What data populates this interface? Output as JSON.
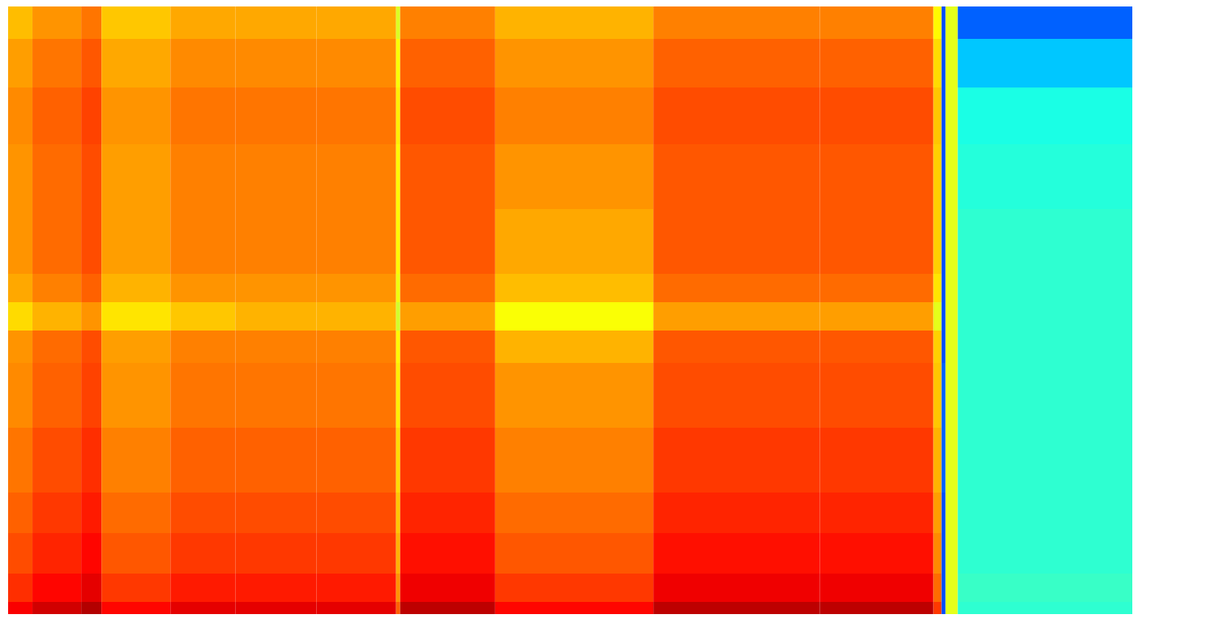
{
  "chart_data": {
    "type": "heatmap",
    "tick_labels": false,
    "xlim": [
      0,
      1385
    ],
    "ylim": [
      0,
      750
    ],
    "x_edges": [
      0,
      30,
      90,
      115,
      200,
      280,
      380,
      478,
      483,
      600,
      795,
      1000,
      1140,
      1150,
      1155,
      1170,
      1385
    ],
    "y_edges": [
      0,
      15,
      50,
      100,
      150,
      230,
      310,
      350,
      385,
      420,
      500,
      580,
      650,
      710,
      750
    ],
    "color_range": [
      0,
      1
    ],
    "cells": [
      [
        0.88,
        0.92,
        0.95,
        0.87,
        0.9,
        0.9,
        0.9,
        0.78,
        0.94,
        0.87,
        0.94,
        0.94,
        0.82,
        0.2,
        0.6,
        0.42
      ],
      [
        0.83,
        0.87,
        0.9,
        0.82,
        0.85,
        0.85,
        0.85,
        0.73,
        0.89,
        0.82,
        0.89,
        0.89,
        0.77,
        0.2,
        0.6,
        0.43
      ],
      [
        0.8,
        0.84,
        0.87,
        0.79,
        0.82,
        0.82,
        0.82,
        0.7,
        0.86,
        0.79,
        0.86,
        0.86,
        0.74,
        0.2,
        0.6,
        0.42
      ],
      [
        0.78,
        0.82,
        0.85,
        0.77,
        0.8,
        0.8,
        0.8,
        0.68,
        0.84,
        0.77,
        0.84,
        0.84,
        0.72,
        0.2,
        0.6,
        0.42
      ],
      [
        0.76,
        0.8,
        0.83,
        0.75,
        0.78,
        0.78,
        0.78,
        0.66,
        0.82,
        0.75,
        0.82,
        0.82,
        0.7,
        0.22,
        0.6,
        0.42
      ],
      [
        0.74,
        0.78,
        0.81,
        0.73,
        0.76,
        0.76,
        0.76,
        0.64,
        0.8,
        0.73,
        0.8,
        0.8,
        0.68,
        0.22,
        0.6,
        0.42
      ],
      [
        0.73,
        0.77,
        0.8,
        0.72,
        0.75,
        0.75,
        0.75,
        0.63,
        0.79,
        0.7,
        0.79,
        0.79,
        0.67,
        0.2,
        0.6,
        0.42
      ],
      [
        0.66,
        0.7,
        0.73,
        0.65,
        0.68,
        0.7,
        0.7,
        0.58,
        0.72,
        0.62,
        0.72,
        0.72,
        0.6,
        0.2,
        0.6,
        0.42
      ],
      [
        0.71,
        0.75,
        0.78,
        0.7,
        0.73,
        0.73,
        0.73,
        0.61,
        0.77,
        0.69,
        0.77,
        0.77,
        0.65,
        0.2,
        0.6,
        0.42
      ],
      [
        0.73,
        0.77,
        0.8,
        0.72,
        0.75,
        0.75,
        0.75,
        0.63,
        0.79,
        0.71,
        0.79,
        0.79,
        0.67,
        0.2,
        0.6,
        0.42
      ],
      [
        0.73,
        0.77,
        0.8,
        0.72,
        0.75,
        0.75,
        0.75,
        0.63,
        0.79,
        0.73,
        0.79,
        0.79,
        0.67,
        0.2,
        0.6,
        0.41
      ],
      [
        0.74,
        0.78,
        0.81,
        0.73,
        0.76,
        0.76,
        0.76,
        0.64,
        0.8,
        0.75,
        0.8,
        0.8,
        0.68,
        0.2,
        0.6,
        0.4
      ],
      [
        0.72,
        0.76,
        0.79,
        0.71,
        0.74,
        0.74,
        0.74,
        0.62,
        0.78,
        0.73,
        0.78,
        0.78,
        0.66,
        0.2,
        0.6,
        0.32
      ],
      [
        0.69,
        0.73,
        0.76,
        0.68,
        0.71,
        0.71,
        0.71,
        0.59,
        0.75,
        0.7,
        0.75,
        0.75,
        0.63,
        0.2,
        0.6,
        0.22
      ]
    ]
  }
}
